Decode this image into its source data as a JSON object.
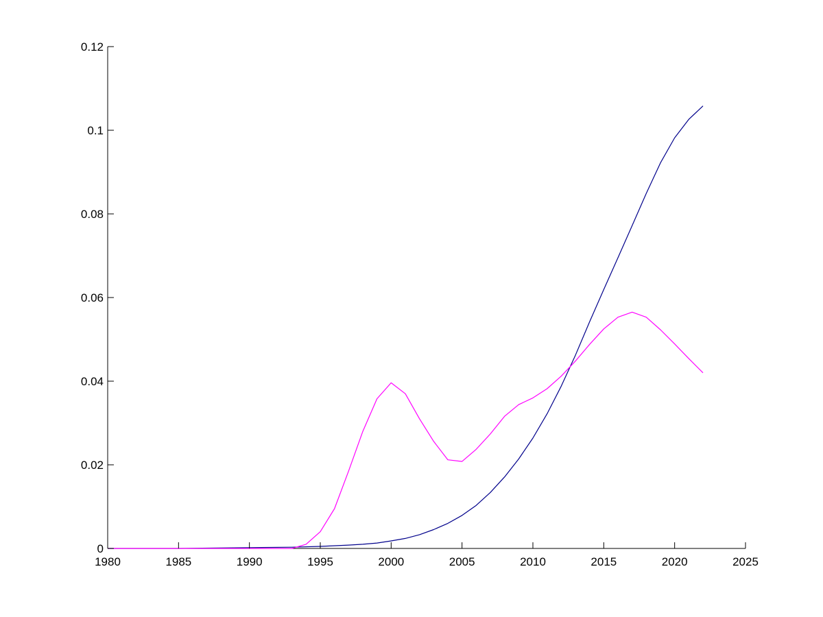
{
  "chart_data": {
    "type": "line",
    "title": "",
    "xlabel": "",
    "ylabel": "",
    "xlim": [
      1980,
      2025
    ],
    "ylim": [
      0,
      0.12
    ],
    "grid": false,
    "legend": "none",
    "xticks": [
      1980,
      1985,
      1990,
      1995,
      2000,
      2005,
      2010,
      2015,
      2020,
      2025
    ],
    "xtick_labels": [
      "1980",
      "1985",
      "1990",
      "1995",
      "2000",
      "2005",
      "2010",
      "2015",
      "2020",
      "2025"
    ],
    "yticks": [
      0,
      0.02,
      0.04,
      0.06,
      0.08,
      0.1,
      0.12
    ],
    "ytick_labels": [
      "0",
      "0.02",
      "0.04",
      "0.06",
      "0.08",
      "0.1",
      "0.12"
    ],
    "series": [
      {
        "color": "#00008b",
        "x": [
          1980,
          1985,
          1990,
          1993,
          1995,
          1997,
          1998,
          1999,
          2000,
          2001,
          2002,
          2003,
          2004,
          2005,
          2006,
          2007,
          2008,
          2009,
          2010,
          2011,
          2012,
          2013,
          2014,
          2015,
          2016,
          2017,
          2018,
          2019,
          2020,
          2021,
          2022
        ],
        "y": [
          0,
          0,
          0.0002,
          0.0003,
          0.0005,
          0.0008,
          0.001,
          0.0013,
          0.0018,
          0.0024,
          0.0033,
          0.0045,
          0.006,
          0.0079,
          0.0103,
          0.0134,
          0.0171,
          0.0214,
          0.0264,
          0.0322,
          0.0388,
          0.0462,
          0.0542,
          0.0619,
          0.0695,
          0.0772,
          0.0849,
          0.0922,
          0.0982,
          0.1026,
          0.1058
        ]
      },
      {
        "color": "#ff00ff",
        "x": [
          1980,
          1985,
          1990,
          1993,
          1994,
          1995,
          1996,
          1997,
          1998,
          1999,
          2000,
          2001,
          2002,
          2003,
          2004,
          2005,
          2006,
          2007,
          2008,
          2009,
          2010,
          2011,
          2012,
          2013,
          2014,
          2015,
          2016,
          2017,
          2018,
          2019,
          2020,
          2021,
          2022
        ],
        "y": [
          0,
          0,
          0,
          0,
          0.001,
          0.004,
          0.0095,
          0.0185,
          0.028,
          0.0358,
          0.0396,
          0.037,
          0.031,
          0.0256,
          0.0212,
          0.0208,
          0.0237,
          0.0274,
          0.0316,
          0.0344,
          0.036,
          0.0382,
          0.0412,
          0.0448,
          0.0488,
          0.0525,
          0.0553,
          0.0565,
          0.0553,
          0.0523,
          0.0489,
          0.0454,
          0.042
        ]
      }
    ]
  }
}
